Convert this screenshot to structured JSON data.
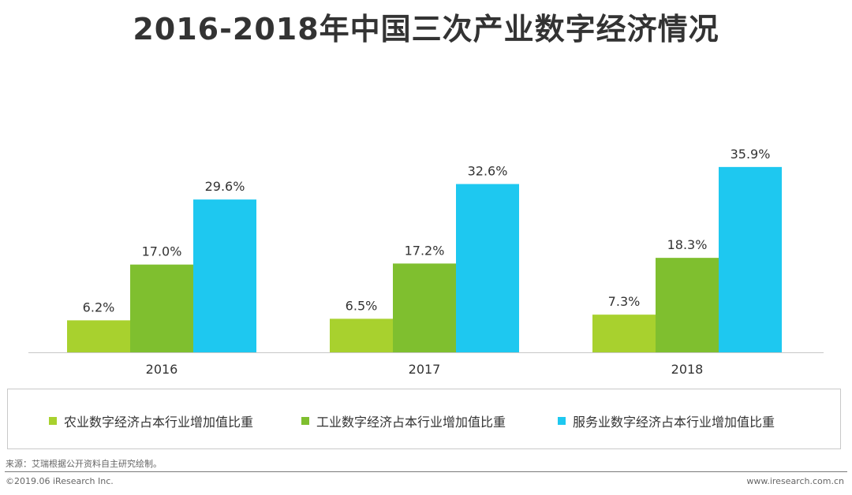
{
  "chart_data": {
    "type": "bar",
    "title": "2016-2018年中国三次产业数字经济情况",
    "categories": [
      "2016",
      "2017",
      "2018"
    ],
    "series": [
      {
        "name": "农业数字经济占本行业增加值比重",
        "color": "#a8d12e",
        "values": [
          6.2,
          6.5,
          7.3
        ],
        "labels": [
          "6.2%",
          "6.5%",
          "7.3%"
        ]
      },
      {
        "name": "工业数字经济占本行业增加值比重",
        "color": "#7fbf2f",
        "values": [
          17.0,
          17.2,
          18.3
        ],
        "labels": [
          "17.0%",
          "17.2%",
          "18.3%"
        ]
      },
      {
        "name": "服务业数字经济占本行业增加值比重",
        "color": "#1ec8f0",
        "values": [
          29.6,
          32.6,
          35.9
        ],
        "labels": [
          "29.6%",
          "32.6%",
          "35.9%"
        ]
      }
    ],
    "ylim": [
      0,
      40
    ],
    "grid": false,
    "legend": "bottom",
    "xlabel": "",
    "ylabel": ""
  },
  "footer": {
    "source": "来源：艾瑞根据公开资料自主研究绘制。",
    "copyright": "©2019.06 iResearch Inc.",
    "website": "www.iresearch.com.cn"
  }
}
